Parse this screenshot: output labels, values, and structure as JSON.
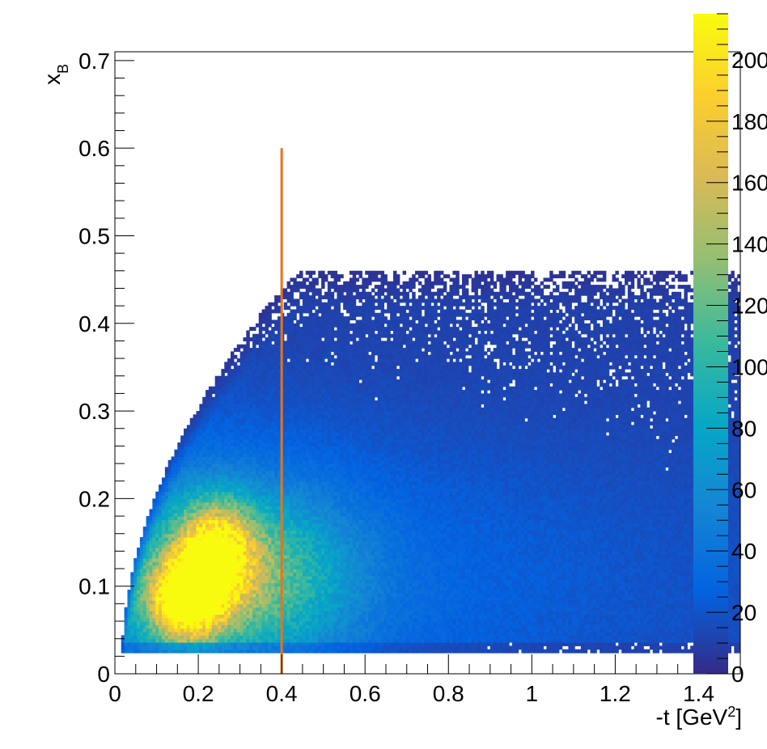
{
  "chart_data": {
    "type": "heatmap",
    "xlabel": "-t [GeV²]",
    "xlabel_main": "-t [GeV",
    "xlabel_sup": "2",
    "xlabel_end": "]",
    "ylabel_main": "x",
    "ylabel_sub": "B",
    "xlim": [
      0,
      1.5
    ],
    "ylim": [
      0,
      0.71
    ],
    "x_ticks": [
      0,
      0.2,
      0.4,
      0.6,
      0.8,
      1,
      1.2,
      1.4
    ],
    "x_tick_labels": [
      "0",
      "0.2",
      "0.4",
      "0.6",
      "0.8",
      "1",
      "1.2",
      "1.4"
    ],
    "y_ticks": [
      0,
      0.1,
      0.2,
      0.3,
      0.4,
      0.5,
      0.6,
      0.7
    ],
    "y_tick_labels": [
      "0",
      "0.1",
      "0.2",
      "0.3",
      "0.4",
      "0.5",
      "0.6",
      "0.7"
    ],
    "z_range": [
      0,
      215
    ],
    "z_ticks": [
      0,
      20,
      40,
      60,
      80,
      100,
      120,
      140,
      160,
      180,
      200
    ],
    "z_tick_labels": [
      "0",
      "20",
      "40",
      "60",
      "80",
      "100",
      "120",
      "140",
      "160",
      "180",
      "200"
    ],
    "colormap": "parula",
    "colormap_stops": [
      "#352a87",
      "#0363e1",
      "#1485d4",
      "#06a7c6",
      "#38b99e",
      "#92bf73",
      "#d9ba56",
      "#fcce2e",
      "#f9fb0e"
    ],
    "peak": {
      "x": 0.17,
      "y": 0.085,
      "value": 200
    },
    "bins": {
      "nx": 200,
      "ny": 120
    },
    "cut_line": {
      "x": 0.4,
      "y_from": 0,
      "y_to": 0.6,
      "color": "#e8731a"
    }
  }
}
